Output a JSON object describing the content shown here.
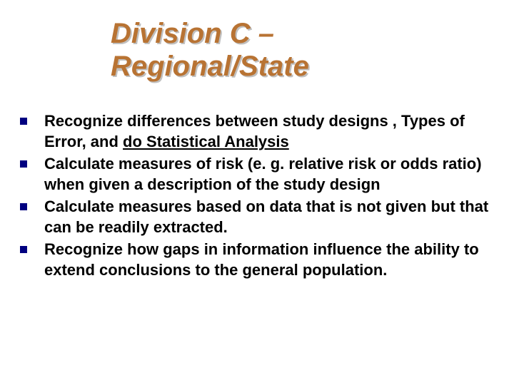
{
  "title": {
    "line1": "Division C –",
    "line2": "Regional/State",
    "color": "#b87333",
    "shadow_color": "#c0c0c0",
    "font_size": 40,
    "font_style": "italic",
    "font_weight": "bold"
  },
  "bullets": {
    "marker_color": "#000080",
    "marker_size": 10,
    "text_color": "#000000",
    "font_size": 22,
    "font_weight": "bold",
    "items": [
      {
        "prefix": "Recognize differences between study designs , Types of Error, and ",
        "underlined": "do Statistical Analysis",
        "suffix": ""
      },
      {
        "prefix": "Calculate measures of risk (e. g. relative risk or odds ratio) when given a description of the study design",
        "underlined": "",
        "suffix": ""
      },
      {
        "prefix": "Calculate measures based on data that is not given but that can be readily extracted.",
        "underlined": "",
        "suffix": ""
      },
      {
        "prefix": "Recognize how gaps in information influence the ability to extend conclusions to the general population.",
        "underlined": "",
        "suffix": ""
      }
    ]
  },
  "background_color": "#ffffff"
}
